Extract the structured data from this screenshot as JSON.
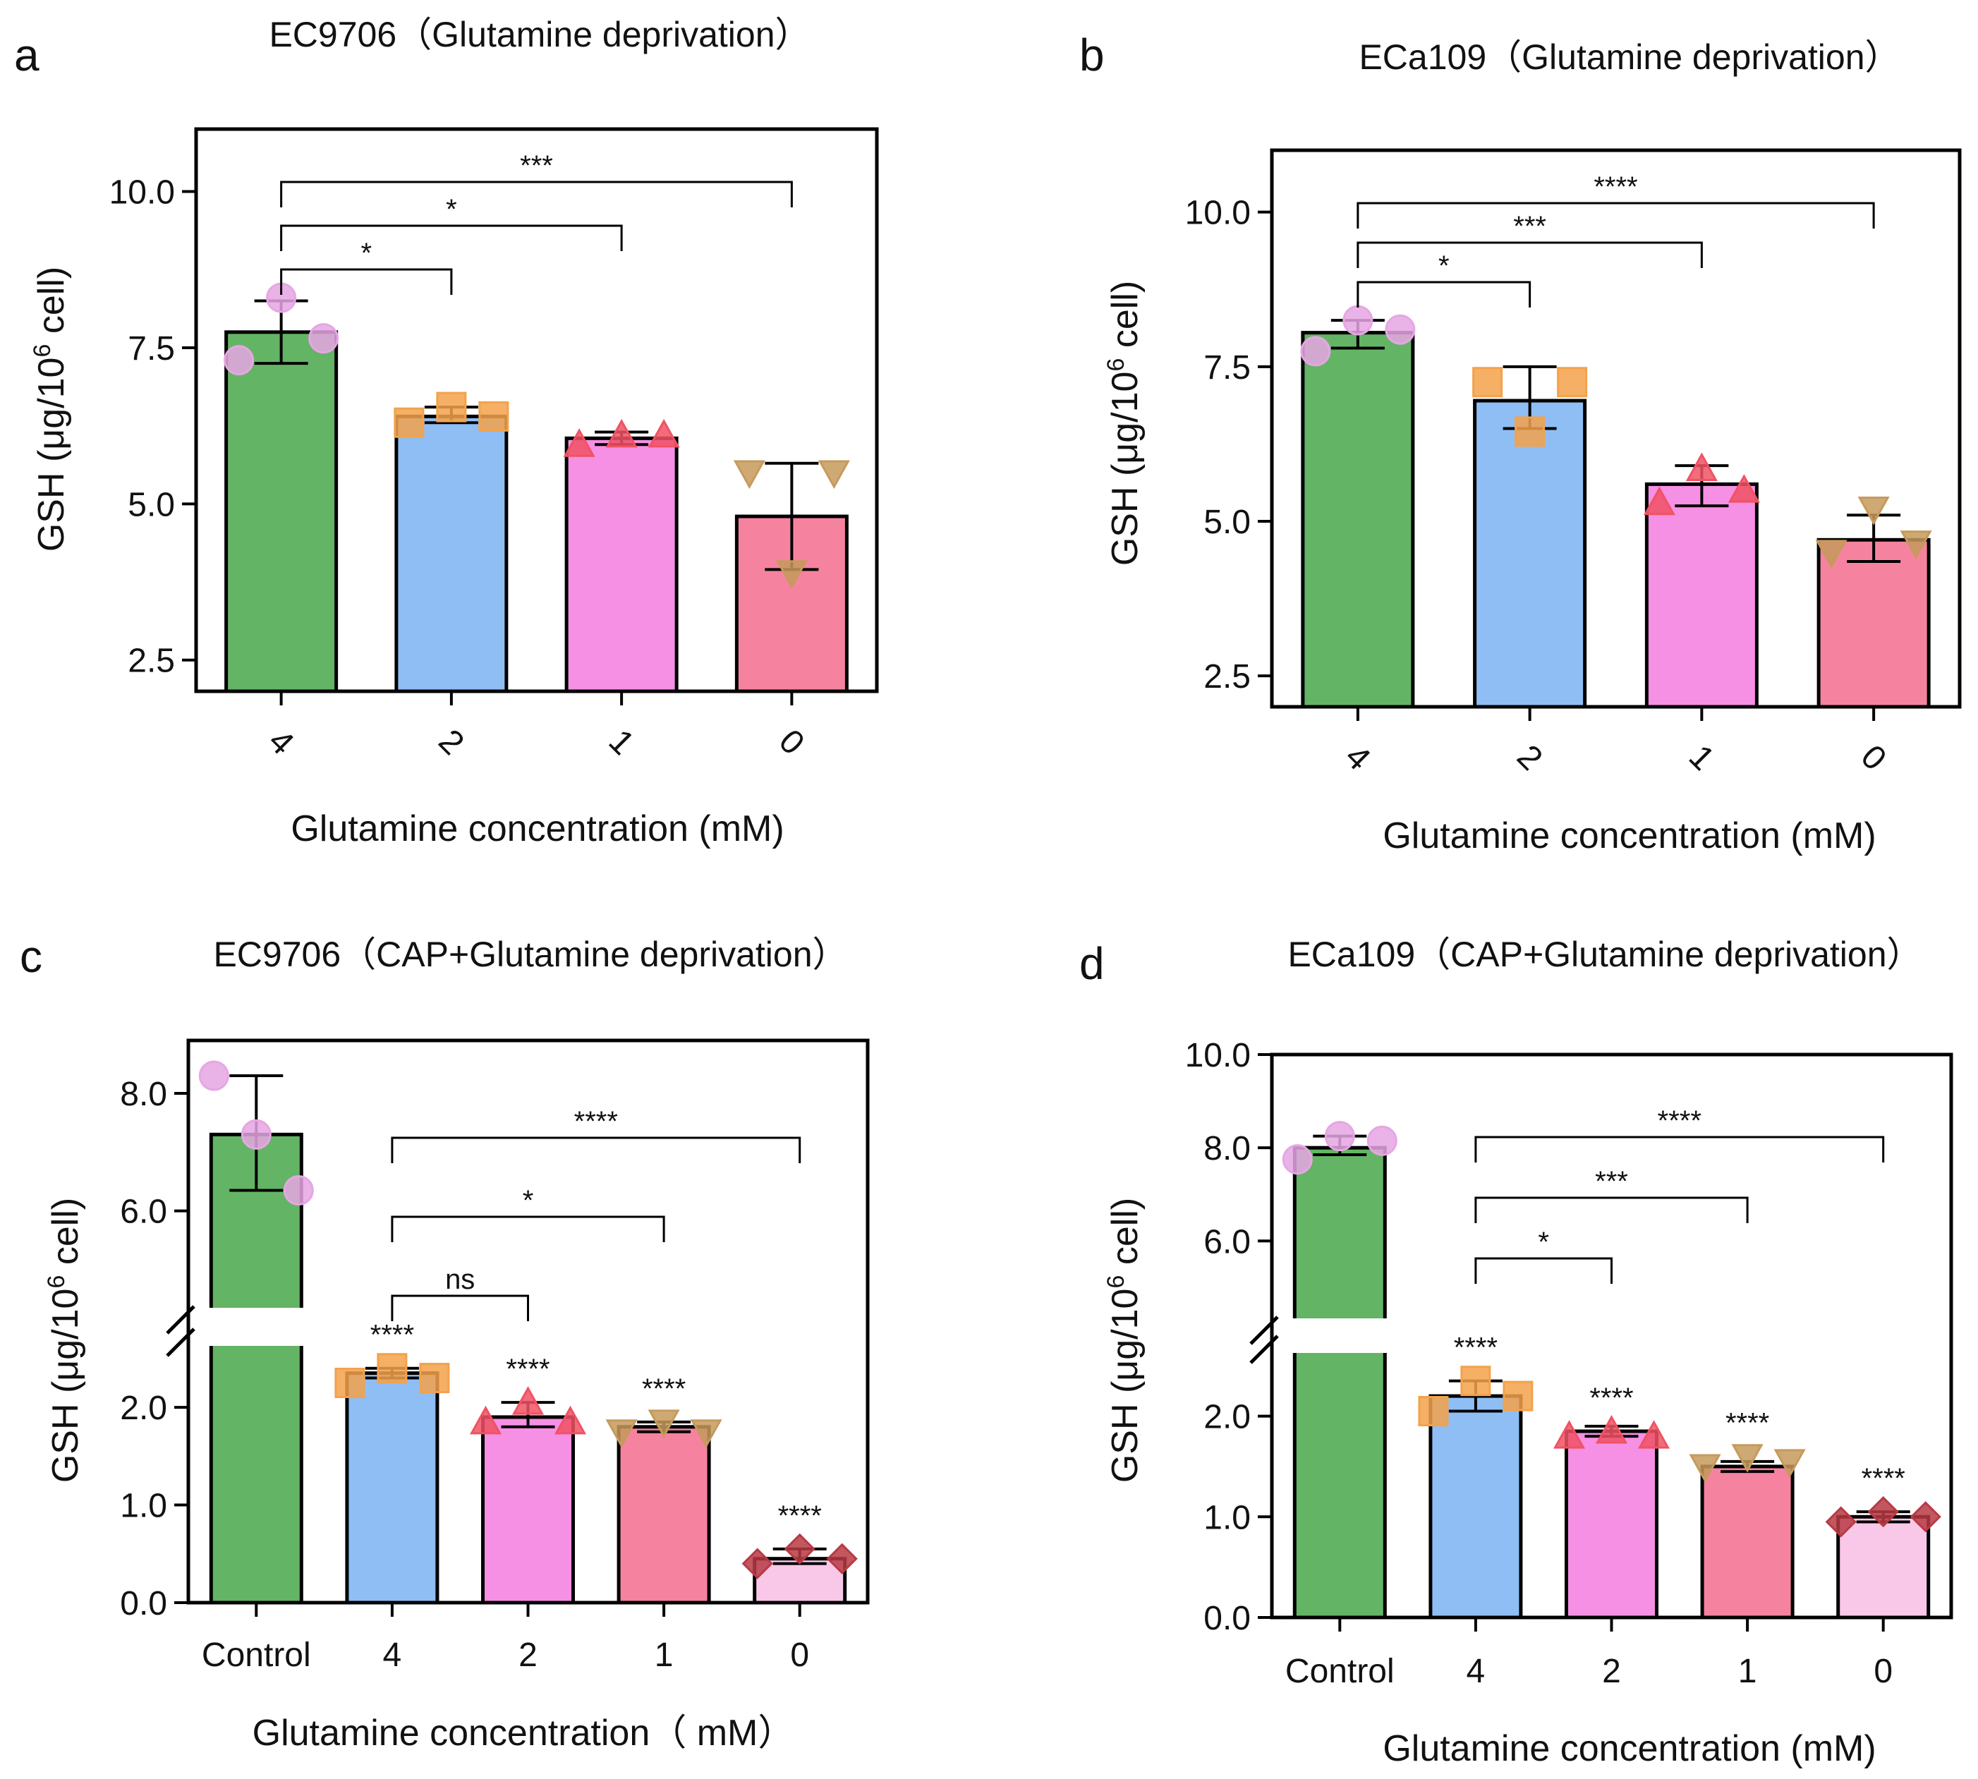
{
  "chart_data": [
    {
      "panel": "a",
      "type": "bar",
      "title": "EC9706（Glutamine deprivation）",
      "xlabel": "Glutamine concentration (mM)",
      "ylabel": "GSH (μg/10⁶ cell)",
      "categories": [
        "4",
        "2",
        "1",
        "0"
      ],
      "values": [
        7.75,
        6.4,
        6.05,
        4.8
      ],
      "error": [
        [
          7.25,
          8.25
        ],
        [
          6.3,
          6.55
        ],
        [
          5.95,
          6.15
        ],
        [
          3.95,
          5.65
        ]
      ],
      "points": [
        [
          7.3,
          8.3,
          7.65
        ],
        [
          6.3,
          6.55,
          6.4
        ],
        [
          5.95,
          6.1,
          6.1
        ],
        [
          5.5,
          3.9,
          5.5
        ]
      ],
      "colors": [
        "#64b465",
        "#8fbef5",
        "#f690e4",
        "#f5839f"
      ],
      "point_colors": [
        "#e6a6e3",
        "#f3a24b",
        "#f05264",
        "#c69a5c"
      ],
      "markers": [
        "circle",
        "square",
        "triangle",
        "triangle-down"
      ],
      "ylim": [
        2.0,
        11.0
      ],
      "yticks": [
        "2.5",
        "5.0",
        "7.5",
        "10.0"
      ],
      "x_tick_rotation": "rotated",
      "comparisons": [
        {
          "from": 0,
          "to": 1,
          "label": "*"
        },
        {
          "from": 0,
          "to": 2,
          "label": "*"
        },
        {
          "from": 0,
          "to": 3,
          "label": "***"
        }
      ],
      "bar_labels": [
        "",
        "",
        "",
        ""
      ]
    },
    {
      "panel": "b",
      "type": "bar",
      "title": "ECa109（Glutamine deprivation）",
      "xlabel": "Glutamine concentration (mM)",
      "ylabel": "GSH (μg/10⁶ cell)",
      "categories": [
        "4",
        "2",
        "1",
        "0"
      ],
      "values": [
        8.05,
        6.95,
        5.6,
        4.7
      ],
      "error": [
        [
          7.8,
          8.25
        ],
        [
          6.5,
          7.5
        ],
        [
          5.25,
          5.9
        ],
        [
          4.35,
          5.1
        ]
      ],
      "points": [
        [
          7.75,
          8.25,
          8.1
        ],
        [
          7.25,
          6.45,
          7.25
        ],
        [
          5.3,
          5.85,
          5.5
        ],
        [
          4.5,
          5.2,
          4.65
        ]
      ],
      "colors": [
        "#64b465",
        "#8fbef5",
        "#f690e4",
        "#f5839f"
      ],
      "point_colors": [
        "#e6a6e3",
        "#f3a24b",
        "#f05264",
        "#c69a5c"
      ],
      "markers": [
        "circle",
        "square",
        "triangle",
        "triangle-down"
      ],
      "ylim": [
        2.0,
        11.0
      ],
      "yticks": [
        "2.5",
        "5.0",
        "7.5",
        "10.0"
      ],
      "x_tick_rotation": "rotated",
      "comparisons": [
        {
          "from": 0,
          "to": 1,
          "label": "*"
        },
        {
          "from": 0,
          "to": 2,
          "label": "***"
        },
        {
          "from": 0,
          "to": 3,
          "label": "****"
        }
      ],
      "bar_labels": [
        "",
        "",
        "",
        ""
      ]
    },
    {
      "panel": "c",
      "type": "bar",
      "title": "EC9706（CAP+Glutamine deprivation）",
      "xlabel": "Glutamine concentration（ mM）",
      "ylabel": "GSH (μg/10⁶ cell)",
      "categories": [
        "Control",
        "4",
        "2",
        "1",
        "0"
      ],
      "values": [
        7.3,
        2.35,
        1.9,
        1.8,
        0.45
      ],
      "error": [
        [
          6.35,
          8.3
        ],
        [
          2.3,
          2.4
        ],
        [
          1.8,
          2.05
        ],
        [
          1.75,
          1.85
        ],
        [
          0.4,
          0.55
        ]
      ],
      "points": [
        [
          8.3,
          7.3,
          6.35
        ],
        [
          2.25,
          2.4,
          2.3
        ],
        [
          1.85,
          2.05,
          1.85
        ],
        [
          1.75,
          1.85,
          1.75
        ],
        [
          0.4,
          0.55,
          0.45
        ]
      ],
      "colors": [
        "#64b465",
        "#8fbef5",
        "#f690e4",
        "#f5839f",
        "#f9c8e8"
      ],
      "point_colors": [
        "#e6a6e3",
        "#f3a24b",
        "#f05264",
        "#c69a5c",
        "#b83a44"
      ],
      "markers": [
        "circle",
        "square",
        "triangle",
        "triangle-down",
        "diamond"
      ],
      "axis_break": {
        "lower": [
          0.0,
          2.6
        ],
        "upper": [
          4.4,
          8.9
        ]
      },
      "yticks": [
        "0.0",
        "1.0",
        "2.0",
        "6.0",
        "8.0"
      ],
      "comparisons": [
        {
          "from": 1,
          "to": 2,
          "label": "ns"
        },
        {
          "from": 1,
          "to": 3,
          "label": "*"
        },
        {
          "from": 1,
          "to": 4,
          "label": "****"
        }
      ],
      "bar_labels": [
        "",
        "****",
        "****",
        "****",
        "****"
      ]
    },
    {
      "panel": "d",
      "type": "bar",
      "title": "ECa109（CAP+Glutamine deprivation）",
      "xlabel": "Glutamine concentration (mM)",
      "ylabel": "GSH (μg/10⁶ cell)",
      "categories": [
        "Control",
        "4",
        "2",
        "1",
        "0"
      ],
      "values": [
        8.0,
        2.2,
        1.85,
        1.5,
        1.0
      ],
      "error": [
        [
          7.85,
          8.25
        ],
        [
          2.05,
          2.35
        ],
        [
          1.8,
          1.9
        ],
        [
          1.45,
          1.55
        ],
        [
          0.95,
          1.05
        ]
      ],
      "points": [
        [
          7.75,
          8.25,
          8.15
        ],
        [
          2.05,
          2.35,
          2.2
        ],
        [
          1.8,
          1.85,
          1.8
        ],
        [
          1.5,
          1.6,
          1.55
        ],
        [
          0.95,
          1.05,
          1.0
        ]
      ],
      "colors": [
        "#64b465",
        "#8fbef5",
        "#f690e4",
        "#f5839f",
        "#f9c8e8"
      ],
      "point_colors": [
        "#e6a6e3",
        "#f3a24b",
        "#f05264",
        "#c69a5c",
        "#b83a44"
      ],
      "markers": [
        "circle",
        "square",
        "triangle",
        "triangle-down",
        "diamond"
      ],
      "axis_break": {
        "lower": [
          0.0,
          2.6
        ],
        "upper": [
          4.4,
          10.0
        ]
      },
      "yticks": [
        "0.0",
        "1.0",
        "2.0",
        "6.0",
        "8.0",
        "10.0"
      ],
      "comparisons": [
        {
          "from": 1,
          "to": 2,
          "label": "*"
        },
        {
          "from": 1,
          "to": 3,
          "label": "***"
        },
        {
          "from": 1,
          "to": 4,
          "label": "****"
        }
      ],
      "bar_labels": [
        "",
        "****",
        "****",
        "****",
        "****"
      ]
    }
  ]
}
